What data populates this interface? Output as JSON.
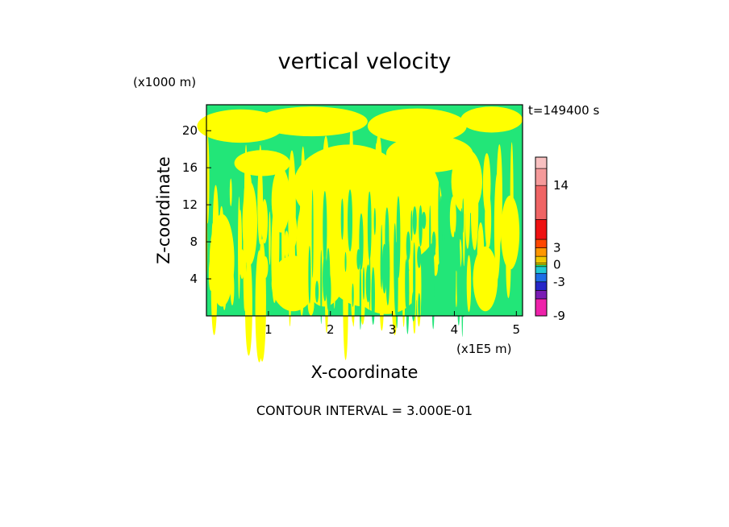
{
  "chart_data": {
    "type": "heatmap",
    "title": "vertical velocity",
    "xlabel": "X-coordinate",
    "ylabel": "Z-coordinate",
    "x_unit": "(x1E5 m)",
    "y_unit": "(x1000 m)",
    "time_label": "t=149400 s",
    "footer": "CONTOUR INTERVAL = 3.000E-01",
    "xlim": [
      0,
      5.1
    ],
    "ylim": [
      0,
      22.8
    ],
    "x_ticks": [
      1,
      2,
      3,
      4,
      5
    ],
    "y_ticks": [
      4,
      8,
      12,
      16,
      20
    ],
    "colorbar": {
      "tick_labels": [
        "14",
        "3",
        "0",
        "-3",
        "-9"
      ],
      "levels": [
        {
          "color": "#ee22aa",
          "range": [
            -9,
            -6
          ]
        },
        {
          "color": "#7a1cb4",
          "range": [
            -6,
            -4.5
          ]
        },
        {
          "color": "#2626c8",
          "range": [
            -4.5,
            -3
          ]
        },
        {
          "color": "#1e6ee6",
          "range": [
            -3,
            -1.5
          ]
        },
        {
          "color": "#22c8d2",
          "range": [
            -1.5,
            -0.3
          ]
        },
        {
          "color": "#22e678",
          "range": [
            -0.3,
            0
          ]
        },
        {
          "color": "#ffff00",
          "range": [
            0,
            0.3
          ]
        },
        {
          "color": "#f0c800",
          "range": [
            0.3,
            1.5
          ]
        },
        {
          "color": "#ff9600",
          "range": [
            1.5,
            3
          ]
        },
        {
          "color": "#ff4600",
          "range": [
            3,
            4.5
          ]
        },
        {
          "color": "#ee1111",
          "range": [
            4.5,
            8
          ]
        },
        {
          "color": "#ef6464",
          "range": [
            8,
            14
          ]
        },
        {
          "color": "#f59a9a",
          "range": [
            14,
            17
          ]
        },
        {
          "color": "#f8c0c0",
          "range": [
            17,
            19
          ]
        }
      ]
    },
    "field_colors": {
      "negative": "#22e678",
      "positive": "#ffff00"
    }
  }
}
